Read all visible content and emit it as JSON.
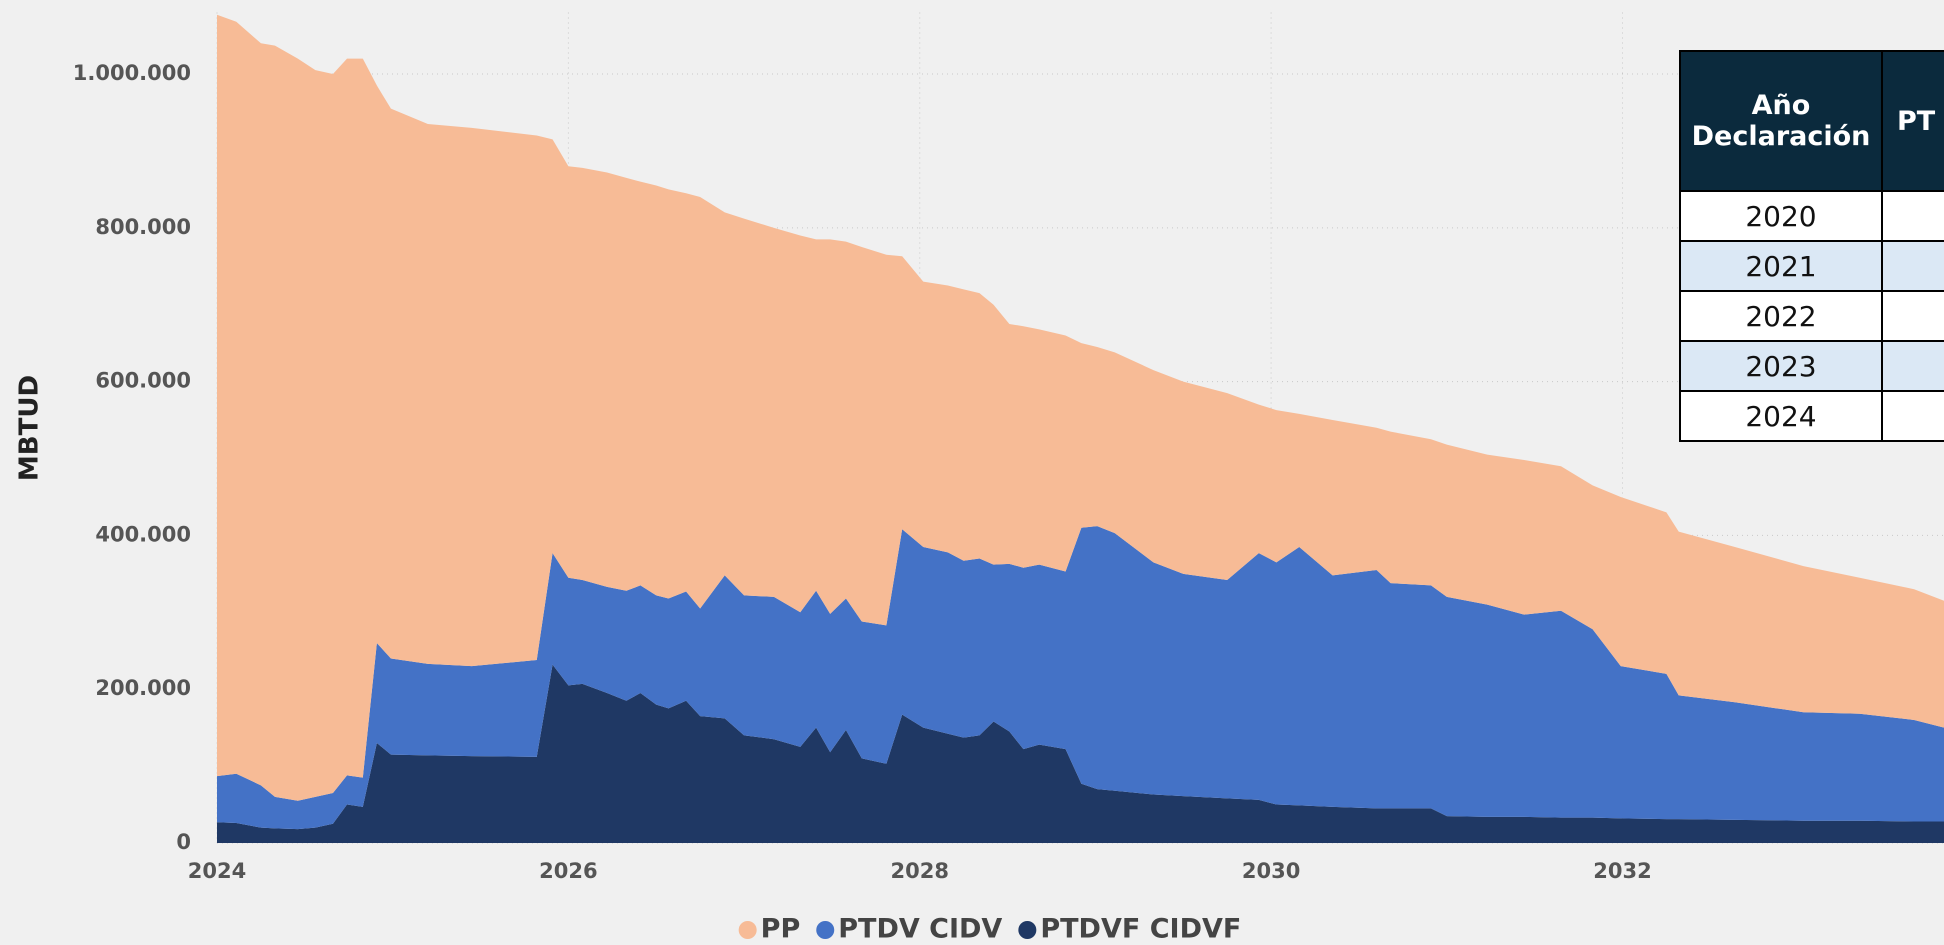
{
  "chart_data": {
    "type": "stacked_area",
    "y_label": "MBTUD",
    "x": [
      2024.0,
      2024.11,
      2024.25,
      2024.33,
      2024.46,
      2024.56,
      2024.66,
      2024.74,
      2024.83,
      2024.91,
      2024.99,
      2025.2,
      2025.45,
      2025.82,
      2025.91,
      2026.0,
      2026.08,
      2026.22,
      2026.33,
      2026.41,
      2026.5,
      2026.57,
      2026.67,
      2026.75,
      2026.89,
      2027.0,
      2027.17,
      2027.32,
      2027.41,
      2027.49,
      2027.58,
      2027.67,
      2027.81,
      2027.9,
      2028.02,
      2028.16,
      2028.25,
      2028.34,
      2028.42,
      2028.51,
      2028.59,
      2028.68,
      2028.83,
      2028.92,
      2029.01,
      2029.11,
      2029.33,
      2029.5,
      2029.75,
      2029.93,
      2030.03,
      2030.16,
      2030.35,
      2030.6,
      2030.68,
      2030.91,
      2031.0,
      2031.23,
      2031.44,
      2031.65,
      2031.83,
      2031.99,
      2032.25,
      2032.32,
      2032.64,
      2033.03,
      2033.35,
      2033.66,
      2033.83
    ],
    "series": [
      {
        "name": "PP",
        "color": "#f7bb96",
        "values": [
          990000,
          978000,
          965000,
          977000,
          965000,
          945000,
          935000,
          932000,
          935000,
          725000,
          715000,
          702000,
          700000,
          682000,
          538000,
          535000,
          536000,
          539000,
          537000,
          525000,
          533000,
          532000,
          518000,
          535000,
          472000,
          490000,
          480000,
          490000,
          457000,
          487000,
          464000,
          487000,
          482000,
          355000,
          345000,
          347000,
          353000,
          345000,
          338000,
          312000,
          314000,
          306000,
          307000,
          240000,
          233000,
          235000,
          250000,
          250000,
          243000,
          193000,
          198000,
          173000,
          202000,
          185000,
          197000,
          190000,
          198000,
          195000,
          201000,
          188000,
          187000,
          220000,
          210000,
          213000,
          202000,
          190000,
          177000,
          170000,
          165000
        ]
      },
      {
        "name": "PTDV CIDV",
        "color": "#4472c6",
        "values": [
          60000,
          64000,
          55000,
          41000,
          37000,
          40000,
          40000,
          38000,
          38000,
          130000,
          125000,
          119000,
          117000,
          126000,
          145000,
          140000,
          135000,
          138000,
          143000,
          140000,
          142000,
          143000,
          142000,
          140000,
          186000,
          182000,
          185000,
          175000,
          178000,
          180000,
          171000,
          178000,
          180000,
          241000,
          235000,
          236000,
          230000,
          230000,
          204000,
          218000,
          236000,
          234000,
          231000,
          333000,
          342000,
          335000,
          302000,
          289000,
          284000,
          321000,
          315000,
          336000,
          301000,
          310000,
          293000,
          290000,
          285000,
          276000,
          263000,
          269000,
          245000,
          198000,
          189000,
          161000,
          153000,
          141000,
          139000,
          132000,
          122000
        ]
      },
      {
        "name": "PTDVF CIDVF",
        "color": "#1f3864",
        "values": [
          27000,
          26000,
          20000,
          19000,
          18000,
          20000,
          25000,
          50000,
          47000,
          130000,
          115000,
          114000,
          113000,
          112000,
          232000,
          205000,
          207000,
          195000,
          185000,
          195000,
          180000,
          175000,
          185000,
          165000,
          162000,
          140000,
          135000,
          125000,
          150000,
          118000,
          147000,
          110000,
          103000,
          167000,
          150000,
          142000,
          137000,
          140000,
          158000,
          145000,
          122000,
          128000,
          122000,
          77000,
          70000,
          68000,
          63000,
          61000,
          58000,
          56000,
          50000,
          49000,
          47000,
          45000,
          45000,
          45000,
          35000,
          34000,
          34000,
          33000,
          33000,
          32000,
          31000,
          31000,
          30000,
          29000,
          29000,
          28000,
          28000
        ]
      }
    ],
    "xlim": [
      2024,
      2033.83
    ],
    "xticks": [
      2024,
      2026,
      2028,
      2030,
      2032
    ],
    "ylim": [
      0,
      1080000
    ],
    "yticks": [
      0,
      {
        "value": 200000,
        "label": "200.000"
      },
      {
        "value": 400000,
        "label": "400.000"
      },
      {
        "value": 600000,
        "label": "600.000"
      },
      {
        "value": 800000,
        "label": "800.000"
      },
      {
        "value": 1000000,
        "label": "1.000.000"
      }
    ],
    "grid": true,
    "legend": "bottom"
  },
  "table": {
    "headers": [
      "Año Declaración",
      "PT"
    ],
    "rows": [
      [
        "2020"
      ],
      [
        "2021"
      ],
      [
        "2022"
      ],
      [
        "2023"
      ],
      [
        "2024"
      ]
    ]
  }
}
